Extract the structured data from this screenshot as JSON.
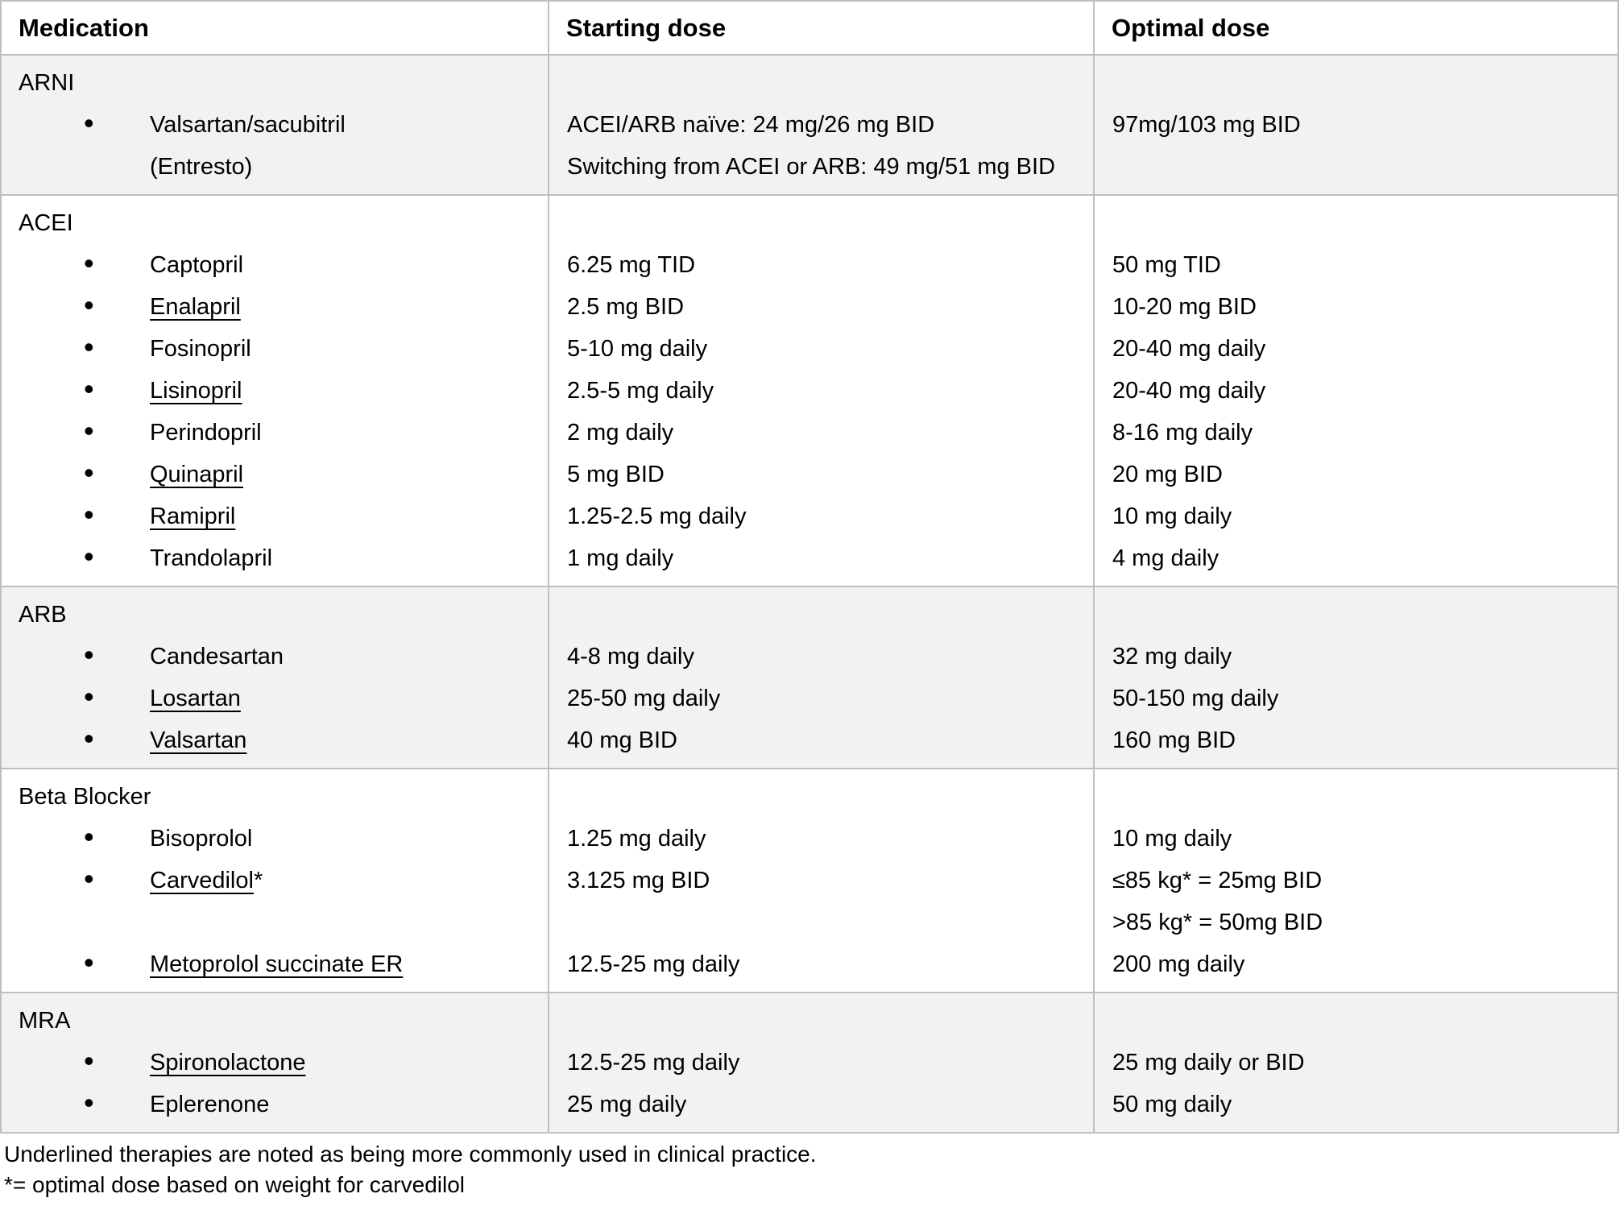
{
  "colors": {
    "section_shade": "#f2f2f2",
    "border": "#bfbfbf",
    "text": "#000000",
    "background": "#ffffff"
  },
  "icons": {
    "bullet": "•"
  },
  "table": {
    "columns": [
      "Medication",
      "Starting dose",
      "Optimal dose"
    ],
    "sections": [
      {
        "label": "ARNI",
        "shaded": true,
        "med_lines": [
          {
            "text": "Valsartan/sacubitril",
            "bullet": true,
            "underline": false
          },
          {
            "text": "(Entresto)",
            "bullet": false,
            "underline": false
          }
        ],
        "start_lines": [
          "ACEI/ARB naïve: 24 mg/26 mg BID",
          "Switching from ACEI or ARB: 49 mg/51 mg BID"
        ],
        "optimal_lines": [
          "97mg/103 mg BID"
        ]
      },
      {
        "label": "ACEI",
        "shaded": false,
        "med_lines": [
          {
            "text": "Captopril",
            "bullet": true,
            "underline": false
          },
          {
            "text": "Enalapril",
            "bullet": true,
            "underline": true
          },
          {
            "text": "Fosinopril",
            "bullet": true,
            "underline": false
          },
          {
            "text": "Lisinopril",
            "bullet": true,
            "underline": true
          },
          {
            "text": "Perindopril",
            "bullet": true,
            "underline": false
          },
          {
            "text": "Quinapril",
            "bullet": true,
            "underline": true
          },
          {
            "text": "Ramipril",
            "bullet": true,
            "underline": true
          },
          {
            "text": "Trandolapril",
            "bullet": true,
            "underline": false
          }
        ],
        "start_lines": [
          "6.25 mg TID",
          "2.5 mg BID",
          "5-10 mg daily",
          "2.5-5 mg daily",
          "2 mg daily",
          "5 mg BID",
          "1.25-2.5 mg daily",
          "1 mg daily"
        ],
        "optimal_lines": [
          "50 mg TID",
          "10-20 mg BID",
          "20-40 mg daily",
          "20-40 mg daily",
          "8-16 mg daily",
          "20 mg BID",
          "10 mg daily",
          "4 mg daily"
        ]
      },
      {
        "label": "ARB",
        "shaded": true,
        "med_lines": [
          {
            "text": "Candesartan",
            "bullet": true,
            "underline": false
          },
          {
            "text": "Losartan",
            "bullet": true,
            "underline": true
          },
          {
            "text": "Valsartan",
            "bullet": true,
            "underline": true
          }
        ],
        "start_lines": [
          "4-8 mg daily",
          "25-50 mg daily",
          "40 mg BID"
        ],
        "optimal_lines": [
          "32 mg daily",
          "50-150 mg daily",
          "160 mg BID"
        ]
      },
      {
        "label": "Beta Blocker",
        "shaded": false,
        "med_lines": [
          {
            "text": "Bisoprolol",
            "bullet": true,
            "underline": false
          },
          {
            "text": "Carvedilol",
            "bullet": true,
            "underline": true,
            "suffix": "*"
          },
          {
            "blank": true
          },
          {
            "text": "Metoprolol succinate ER",
            "bullet": true,
            "underline": true
          }
        ],
        "start_lines": [
          "1.25 mg daily",
          "3.125 mg BID",
          "",
          "12.5-25 mg daily"
        ],
        "optimal_lines": [
          "10 mg daily",
          "≤85 kg* = 25mg BID",
          ">85 kg* = 50mg BID",
          "200 mg daily"
        ]
      },
      {
        "label": "MRA",
        "shaded": true,
        "med_lines": [
          {
            "text": "Spironolactone",
            "bullet": true,
            "underline": true
          },
          {
            "text": "Eplerenone",
            "bullet": true,
            "underline": false
          }
        ],
        "start_lines": [
          "12.5-25 mg daily",
          "25 mg daily"
        ],
        "optimal_lines": [
          "25 mg daily or BID",
          "50 mg daily"
        ]
      }
    ]
  },
  "footnotes": [
    "Underlined therapies are noted as being more commonly used in clinical practice.",
    "*= optimal dose based on weight for carvedilol"
  ]
}
